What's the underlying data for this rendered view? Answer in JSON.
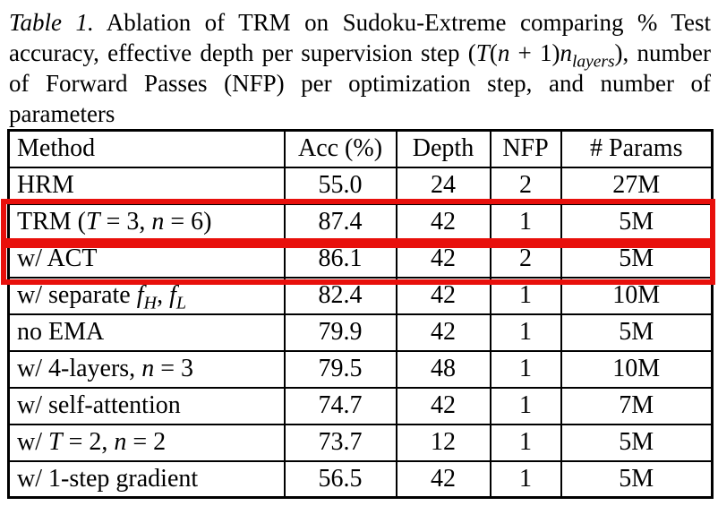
{
  "page": {
    "background": "#ffffff",
    "text_color": "#000000"
  },
  "caption": {
    "label_html": "<i>Table 1.</i>",
    "body_html": " Ablation of TRM on Sudoku-Extreme comparing % Test accuracy, effective depth per supervision step (<i>T</i>(<i>n</i> + 1)<i>n<sub>layers</sub></i>), number of Forward Passes (NFP) per optimization step, and number of parameters"
  },
  "table": {
    "headers": [
      "Method",
      "Acc (%)",
      "Depth",
      "NFP",
      "# Params"
    ],
    "rows": [
      {
        "method_html": "HRM",
        "acc": "55.0",
        "depth": "24",
        "nfp": "2",
        "params": "27M",
        "highlighted": false
      },
      {
        "method_html": "TRM (<i>T</i> = 3, <i>n</i> = 6)",
        "acc": "87.4",
        "depth": "42",
        "nfp": "1",
        "params": "5M",
        "highlighted": true
      },
      {
        "method_html": "w/ ACT",
        "acc": "86.1",
        "depth": "42",
        "nfp": "2",
        "params": "5M",
        "highlighted": true
      },
      {
        "method_html": "w/ separate <i>f<sub>H</sub></i>, <i>f<sub>L</sub></i>",
        "acc": "82.4",
        "depth": "42",
        "nfp": "1",
        "params": "10M",
        "highlighted": false
      },
      {
        "method_html": "no EMA",
        "acc": "79.9",
        "depth": "42",
        "nfp": "1",
        "params": "5M",
        "highlighted": false
      },
      {
        "method_html": "w/ 4-layers, <i>n</i> = 3",
        "acc": "79.5",
        "depth": "48",
        "nfp": "1",
        "params": "10M",
        "highlighted": false
      },
      {
        "method_html": "w/ self-attention",
        "acc": "74.7",
        "depth": "42",
        "nfp": "1",
        "params": "7M",
        "highlighted": false
      },
      {
        "method_html": "w/ <i>T</i> = 2, <i>n</i> = 2",
        "acc": "73.7",
        "depth": "12",
        "nfp": "1",
        "params": "5M",
        "highlighted": false
      },
      {
        "method_html": "w/ 1-step gradient",
        "acc": "56.5",
        "depth": "42",
        "nfp": "1",
        "params": "5M",
        "highlighted": false
      }
    ]
  },
  "annotations": {
    "highlight_color": "#e8100c",
    "boxes": [
      {
        "name": "highlight-box-trm-row",
        "row_index": 1
      },
      {
        "name": "highlight-box-act-row",
        "row_index": 2
      }
    ]
  }
}
